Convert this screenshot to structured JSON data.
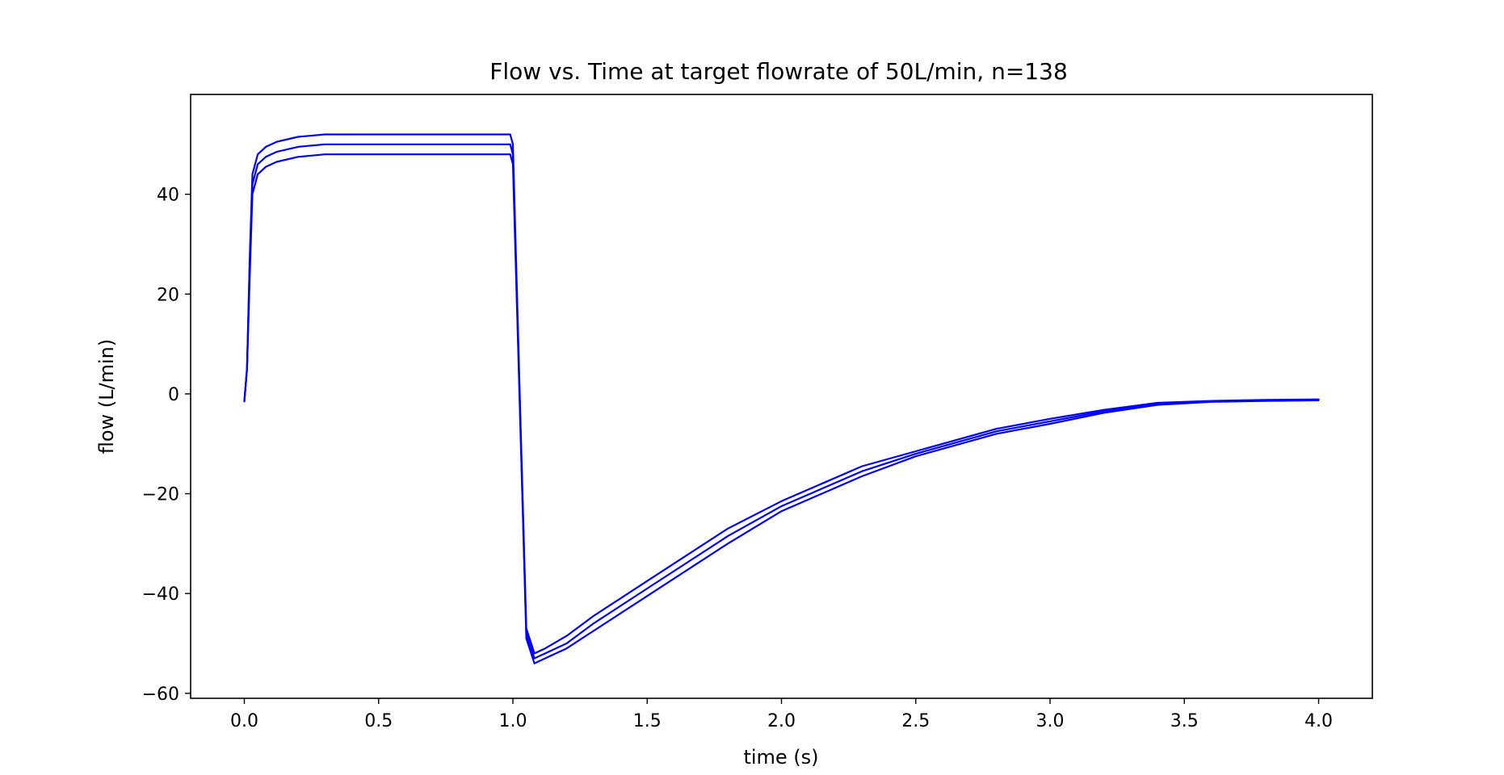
{
  "chart_data": {
    "type": "line",
    "title": "Flow vs. Time at target flowrate of 50L/min, n=138",
    "xlabel": "time (s)",
    "ylabel": "flow (L/min)",
    "xlim": [
      -0.2,
      4.2
    ],
    "ylim": [
      -61,
      60
    ],
    "x_ticks": [
      0.0,
      0.5,
      1.0,
      1.5,
      2.0,
      2.5,
      3.0,
      3.5,
      4.0
    ],
    "x_tick_labels": [
      "0.0",
      "0.5",
      "1.0",
      "1.5",
      "2.0",
      "2.5",
      "3.0",
      "3.5",
      "4.0"
    ],
    "y_ticks": [
      -60,
      -40,
      -20,
      0,
      20,
      40
    ],
    "y_tick_labels": [
      "−60",
      "−40",
      "−20",
      "0",
      "20",
      "40"
    ],
    "grid": false,
    "legend": "none",
    "line_color": "#0000ff",
    "series": [
      {
        "x": [
          0.0,
          0.01,
          0.02,
          0.03,
          0.05,
          0.08,
          0.12,
          0.2,
          0.3,
          0.5,
          0.8,
          0.99,
          1.0,
          1.03,
          1.05,
          1.08,
          1.12,
          1.2,
          1.3,
          1.5,
          1.8,
          2.0,
          2.3,
          2.5,
          2.8,
          3.0,
          3.2,
          3.4,
          3.6,
          3.8,
          4.0
        ],
        "y": [
          -1.5,
          5,
          25,
          42,
          46,
          47.5,
          48.5,
          49.5,
          50,
          50,
          50,
          50,
          48,
          -10,
          -48,
          -53,
          -52,
          -50,
          -46,
          -39,
          -28.5,
          -22.5,
          -15.5,
          -12,
          -7.5,
          -5.5,
          -3.5,
          -2,
          -1.5,
          -1.3,
          -1.2
        ]
      },
      {
        "x": [
          0.0,
          0.01,
          0.02,
          0.03,
          0.05,
          0.08,
          0.12,
          0.2,
          0.3,
          0.5,
          0.8,
          0.99,
          1.0,
          1.03,
          1.05,
          1.08,
          1.12,
          1.2,
          1.3,
          1.5,
          1.8,
          2.0,
          2.3,
          2.5,
          2.8,
          3.0,
          3.2,
          3.4,
          3.6,
          3.8,
          4.0
        ],
        "y": [
          -1.5,
          5,
          27,
          44,
          48,
          49.5,
          50.5,
          51.5,
          52,
          52,
          52,
          52,
          50,
          -9,
          -47,
          -52,
          -51,
          -48.5,
          -44.5,
          -37.5,
          -27,
          -21.5,
          -14.5,
          -11.5,
          -7,
          -5,
          -3.2,
          -1.8,
          -1.4,
          -1.2,
          -1.1
        ]
      },
      {
        "x": [
          0.0,
          0.01,
          0.02,
          0.03,
          0.05,
          0.08,
          0.12,
          0.2,
          0.3,
          0.5,
          0.8,
          0.99,
          1.0,
          1.03,
          1.05,
          1.08,
          1.12,
          1.2,
          1.3,
          1.5,
          1.8,
          2.0,
          2.3,
          2.5,
          2.8,
          3.0,
          3.2,
          3.4,
          3.6,
          3.8,
          4.0
        ],
        "y": [
          -1.5,
          5,
          23,
          40,
          44,
          45.5,
          46.5,
          47.5,
          48,
          48,
          48,
          48,
          46,
          -11,
          -49,
          -54,
          -53,
          -51,
          -47.5,
          -40.5,
          -30,
          -23.5,
          -16.5,
          -12.5,
          -8,
          -6,
          -3.8,
          -2.2,
          -1.6,
          -1.4,
          -1.3
        ]
      }
    ]
  }
}
